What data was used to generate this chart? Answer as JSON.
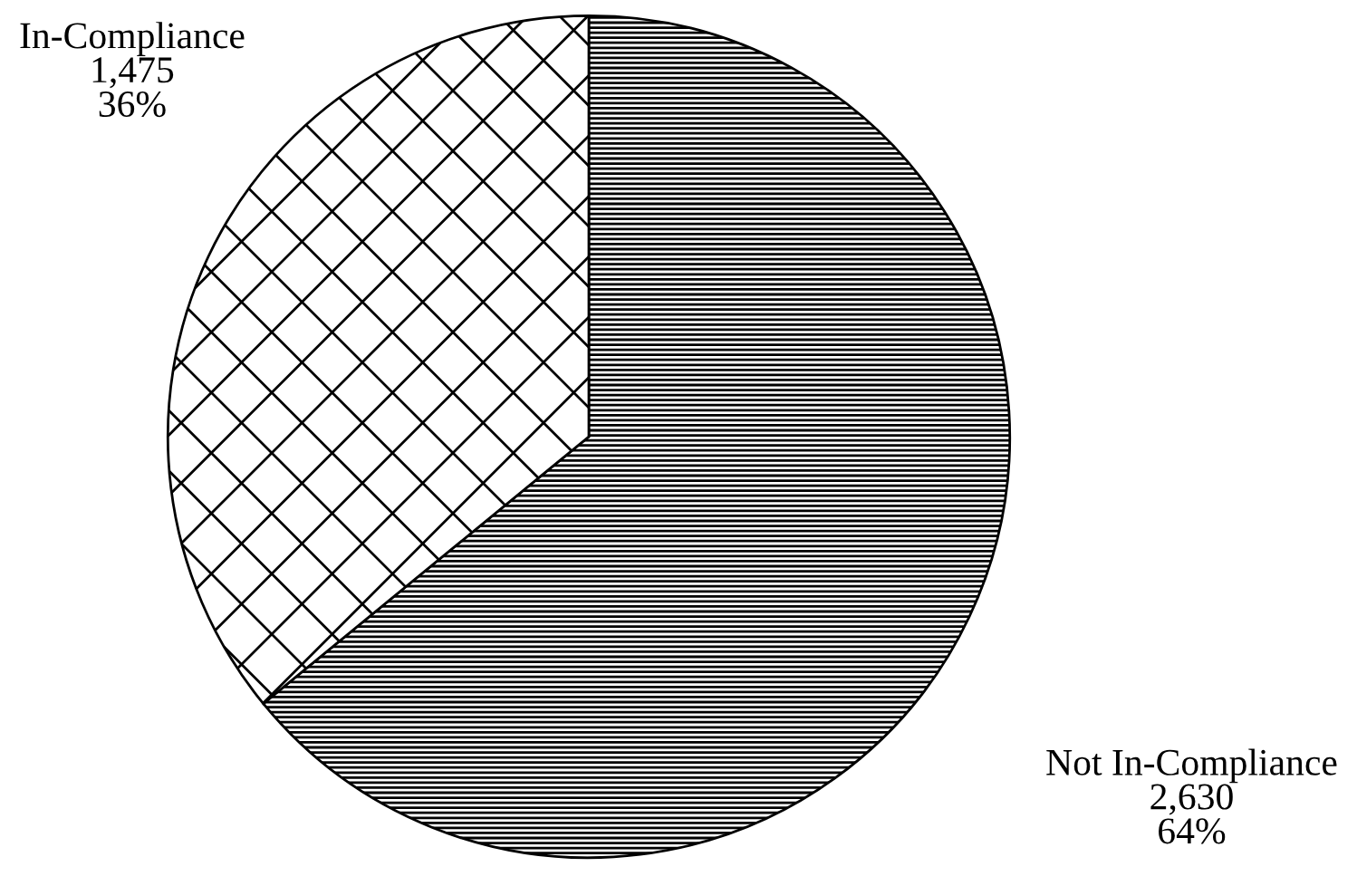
{
  "chart_data": {
    "type": "pie",
    "categories": [
      "Not In-Compliance",
      "In-Compliance"
    ],
    "values": [
      2630,
      1475
    ],
    "value_labels": [
      "2,630\n64%",
      "1,475\n36%"
    ],
    "colors": [
      "#000000",
      "#000000"
    ],
    "legend": false
  }
}
